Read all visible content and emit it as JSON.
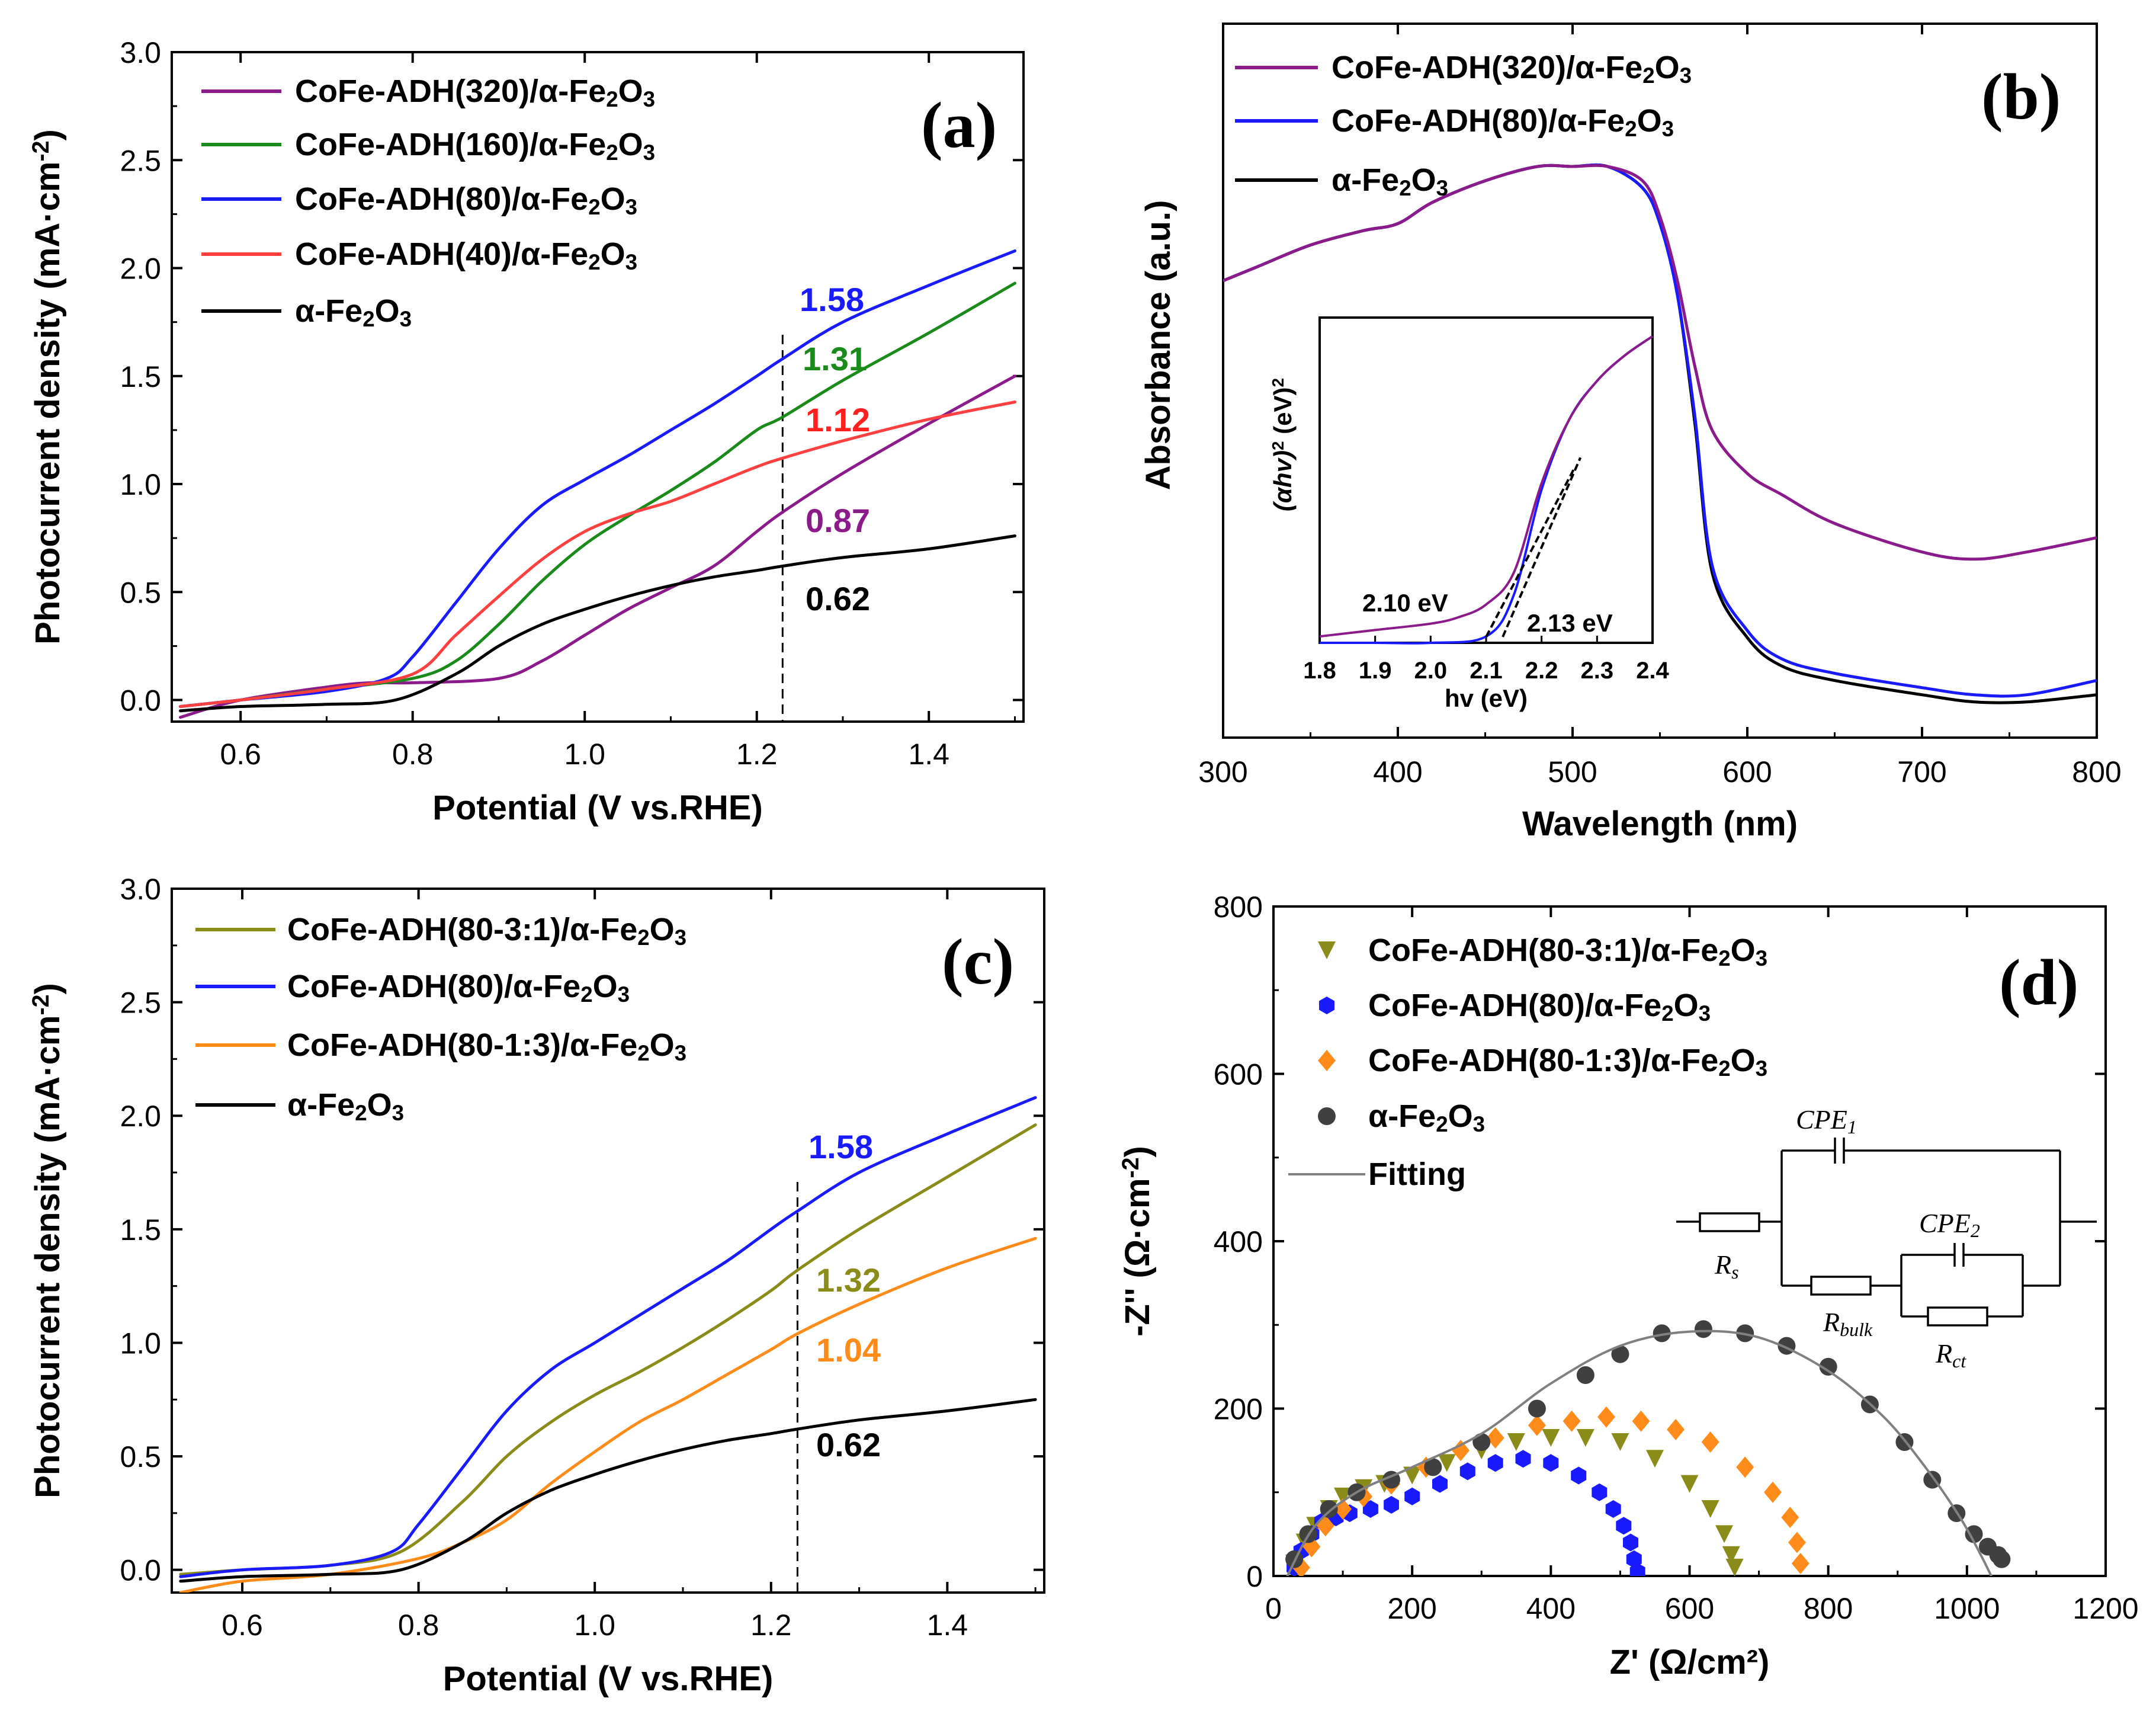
{
  "figure_caption": "",
  "chart_data": [
    {
      "panel": "(a)",
      "type": "line",
      "xlabel": "Potential (V vs.RHE)",
      "ylabel": "Photocurrent density (mA·cm⁻²)",
      "xlim": [
        0.52,
        1.51
      ],
      "ylim": [
        -0.1,
        3.0
      ],
      "xticks": [
        "0.6",
        "0.8",
        "1.0",
        "1.2",
        "1.4"
      ],
      "yticks": [
        "0.0",
        "0.5",
        "1.0",
        "1.5",
        "2.0",
        "2.5",
        "3.0"
      ],
      "dashed_line_x": 1.23,
      "series": [
        {
          "name": "CoFe-ADH(320)/α-Fe₂O₃",
          "color": "#8b1a8b",
          "x": [
            0.53,
            0.6,
            0.7,
            0.75,
            0.8,
            0.9,
            0.95,
            1.0,
            1.05,
            1.1,
            1.15,
            1.2,
            1.23,
            1.3,
            1.4,
            1.5
          ],
          "y": [
            -0.08,
            0.0,
            0.06,
            0.08,
            0.08,
            0.1,
            0.18,
            0.3,
            0.42,
            0.52,
            0.62,
            0.78,
            0.87,
            1.05,
            1.28,
            1.5
          ]
        },
        {
          "name": "CoFe-ADH(160)/α-Fe₂O₃",
          "color": "#1a8a1a",
          "x": [
            0.53,
            0.6,
            0.7,
            0.8,
            0.85,
            0.9,
            0.95,
            1.0,
            1.05,
            1.1,
            1.15,
            1.2,
            1.23,
            1.3,
            1.4,
            1.5
          ],
          "y": [
            -0.03,
            0.0,
            0.05,
            0.1,
            0.18,
            0.35,
            0.55,
            0.72,
            0.85,
            0.97,
            1.1,
            1.25,
            1.31,
            1.48,
            1.7,
            1.93
          ]
        },
        {
          "name": "CoFe-ADH(80)/α-Fe₂O₃",
          "color": "#1a1aff",
          "x": [
            0.53,
            0.6,
            0.7,
            0.77,
            0.8,
            0.85,
            0.9,
            0.95,
            1.0,
            1.05,
            1.1,
            1.15,
            1.2,
            1.23,
            1.3,
            1.4,
            1.5
          ],
          "y": [
            -0.03,
            0.0,
            0.04,
            0.1,
            0.2,
            0.45,
            0.7,
            0.9,
            1.02,
            1.13,
            1.25,
            1.37,
            1.5,
            1.58,
            1.75,
            1.92,
            2.08
          ]
        },
        {
          "name": "CoFe-ADH(40)/α-Fe₂O₃",
          "color": "#ff4040",
          "x": [
            0.53,
            0.6,
            0.7,
            0.8,
            0.85,
            0.9,
            0.95,
            1.0,
            1.05,
            1.1,
            1.15,
            1.2,
            1.23,
            1.3,
            1.4,
            1.5
          ],
          "y": [
            -0.03,
            0.0,
            0.05,
            0.12,
            0.3,
            0.48,
            0.65,
            0.78,
            0.86,
            0.92,
            1.0,
            1.08,
            1.12,
            1.2,
            1.3,
            1.38
          ]
        },
        {
          "name": "α-Fe₂O₃",
          "color": "#000000",
          "x": [
            0.53,
            0.6,
            0.7,
            0.78,
            0.85,
            0.9,
            0.95,
            1.0,
            1.05,
            1.1,
            1.15,
            1.2,
            1.23,
            1.3,
            1.4,
            1.5
          ],
          "y": [
            -0.05,
            -0.03,
            -0.02,
            0.0,
            0.12,
            0.25,
            0.35,
            0.42,
            0.48,
            0.53,
            0.57,
            0.6,
            0.62,
            0.66,
            0.7,
            0.76
          ]
        }
      ],
      "annotations": [
        {
          "text": "1.58",
          "color": "#1a1aff"
        },
        {
          "text": "1.31",
          "color": "#1a8a1a"
        },
        {
          "text": "1.12",
          "color": "#ff2020"
        },
        {
          "text": "0.87",
          "color": "#8b1a8b"
        },
        {
          "text": "0.62",
          "color": "#000000"
        }
      ]
    },
    {
      "panel": "(b)",
      "type": "line",
      "xlabel": "Wavelength (nm)",
      "ylabel": "Absorbance (a.u.)",
      "xlim": [
        300,
        800
      ],
      "ylim": [
        0,
        1.0
      ],
      "xticks": [
        "300",
        "400",
        "500",
        "600",
        "700",
        "800"
      ],
      "series": [
        {
          "name": "CoFe-ADH(320)/α-Fe₂O₃",
          "color": "#8b1a8b",
          "x": [
            300,
            320,
            350,
            380,
            400,
            420,
            450,
            480,
            500,
            520,
            540,
            550,
            560,
            570,
            580,
            600,
            620,
            650,
            700,
            730,
            760,
            800
          ],
          "y": [
            0.64,
            0.66,
            0.69,
            0.71,
            0.72,
            0.75,
            0.78,
            0.8,
            0.8,
            0.8,
            0.78,
            0.73,
            0.64,
            0.52,
            0.43,
            0.37,
            0.34,
            0.3,
            0.26,
            0.25,
            0.26,
            0.28
          ]
        },
        {
          "name": "CoFe-ADH(80)/α-Fe₂O₃",
          "color": "#1a1aff",
          "x": [
            300,
            320,
            350,
            380,
            400,
            420,
            450,
            480,
            500,
            520,
            540,
            550,
            560,
            570,
            580,
            600,
            620,
            650,
            700,
            730,
            760,
            800
          ],
          "y": [
            0.64,
            0.66,
            0.69,
            0.71,
            0.72,
            0.75,
            0.78,
            0.8,
            0.8,
            0.8,
            0.77,
            0.72,
            0.62,
            0.45,
            0.24,
            0.15,
            0.11,
            0.09,
            0.07,
            0.06,
            0.06,
            0.08
          ]
        },
        {
          "name": "α-Fe₂O₃",
          "color": "#000000",
          "x": [
            300,
            320,
            350,
            380,
            400,
            420,
            450,
            480,
            500,
            520,
            540,
            550,
            560,
            570,
            580,
            600,
            620,
            650,
            700,
            730,
            760,
            800
          ],
          "y": [
            0.64,
            0.66,
            0.69,
            0.71,
            0.72,
            0.75,
            0.78,
            0.8,
            0.8,
            0.8,
            0.77,
            0.72,
            0.62,
            0.44,
            0.23,
            0.14,
            0.1,
            0.08,
            0.06,
            0.05,
            0.05,
            0.06
          ]
        }
      ],
      "inset": {
        "xlabel": "hv (eV)",
        "ylabel": "(αhv)² (eV)²",
        "xlim": [
          1.8,
          2.4
        ],
        "xticks": [
          "1.8",
          "1.9",
          "2.0",
          "2.1",
          "2.2",
          "2.3",
          "2.4"
        ],
        "series": [
          {
            "name": "CoFe-ADH(320)/α-Fe₂O₃",
            "color": "#8b1a8b",
            "x": [
              1.8,
              1.9,
              2.0,
              2.05,
              2.1,
              2.15,
              2.2,
              2.25,
              2.3,
              2.35,
              2.4
            ],
            "y": [
              0.02,
              0.04,
              0.06,
              0.08,
              0.12,
              0.22,
              0.5,
              0.7,
              0.82,
              0.9,
              0.96
            ]
          },
          {
            "name": "CoFe-ADH(80)/α-Fe₂O₃",
            "color": "#1a1aff",
            "x": [
              1.8,
              1.9,
              2.0,
              2.1,
              2.15,
              2.2,
              2.25,
              2.3,
              2.35,
              2.4
            ],
            "y": [
              0.0,
              0.0,
              0.0,
              0.02,
              0.15,
              0.48,
              0.7,
              0.82,
              0.9,
              0.96
            ]
          }
        ],
        "annotations": [
          {
            "text": "2.10 eV"
          },
          {
            "text": "2.13 eV"
          }
        ]
      }
    },
    {
      "panel": "(c)",
      "type": "line",
      "xlabel": "Potential (V vs.RHE)",
      "ylabel": "Photocurrent density (mA·cm⁻²)",
      "xlim": [
        0.52,
        1.51
      ],
      "ylim": [
        -0.1,
        3.0
      ],
      "xticks": [
        "0.6",
        "0.8",
        "1.0",
        "1.2",
        "1.4"
      ],
      "yticks": [
        "0.0",
        "0.5",
        "1.0",
        "1.5",
        "2.0",
        "2.5",
        "3.0"
      ],
      "dashed_line_x": 1.23,
      "series": [
        {
          "name": "CoFe-ADH(80-3:1)/α-Fe₂O₃",
          "color": "#8b8b1a",
          "x": [
            0.53,
            0.6,
            0.7,
            0.78,
            0.85,
            0.9,
            0.95,
            1.0,
            1.05,
            1.1,
            1.15,
            1.2,
            1.23,
            1.3,
            1.4,
            1.5
          ],
          "y": [
            -0.02,
            0.0,
            0.02,
            0.08,
            0.3,
            0.5,
            0.65,
            0.77,
            0.87,
            0.98,
            1.1,
            1.23,
            1.32,
            1.5,
            1.73,
            1.96
          ]
        },
        {
          "name": "CoFe-ADH(80)/α-Fe₂O₃",
          "color": "#1a1aff",
          "x": [
            0.53,
            0.6,
            0.7,
            0.77,
            0.8,
            0.85,
            0.9,
            0.95,
            1.0,
            1.05,
            1.1,
            1.15,
            1.2,
            1.23,
            1.3,
            1.4,
            1.5
          ],
          "y": [
            -0.03,
            0.0,
            0.02,
            0.08,
            0.2,
            0.45,
            0.7,
            0.88,
            1.0,
            1.12,
            1.24,
            1.36,
            1.5,
            1.58,
            1.75,
            1.92,
            2.08
          ]
        },
        {
          "name": "CoFe-ADH(80-1:3)/α-Fe₂O₃",
          "color": "#ff8c1a",
          "x": [
            0.53,
            0.6,
            0.7,
            0.8,
            0.85,
            0.9,
            0.95,
            1.0,
            1.05,
            1.1,
            1.15,
            1.2,
            1.23,
            1.3,
            1.4,
            1.5
          ],
          "y": [
            -0.1,
            -0.05,
            -0.02,
            0.05,
            0.12,
            0.22,
            0.38,
            0.52,
            0.65,
            0.75,
            0.86,
            0.97,
            1.04,
            1.17,
            1.33,
            1.46
          ]
        },
        {
          "name": "α-Fe₂O₃",
          "color": "#000000",
          "x": [
            0.53,
            0.6,
            0.7,
            0.78,
            0.85,
            0.9,
            0.95,
            1.0,
            1.05,
            1.1,
            1.15,
            1.2,
            1.23,
            1.3,
            1.4,
            1.5
          ],
          "y": [
            -0.05,
            -0.03,
            -0.02,
            0.0,
            0.12,
            0.25,
            0.35,
            0.42,
            0.48,
            0.53,
            0.57,
            0.6,
            0.62,
            0.66,
            0.7,
            0.75
          ]
        }
      ],
      "annotations": [
        {
          "text": "1.58",
          "color": "#1a1aff"
        },
        {
          "text": "1.32",
          "color": "#8b8b1a"
        },
        {
          "text": "1.04",
          "color": "#ff8c1a"
        },
        {
          "text": "0.62",
          "color": "#000000"
        }
      ]
    },
    {
      "panel": "(d)",
      "type": "scatter",
      "xlabel": "Z' (Ω/cm²)",
      "ylabel": "-Z'' (Ω·cm⁻²)",
      "xlim": [
        0,
        1200
      ],
      "ylim": [
        0,
        800
      ],
      "xticks": [
        "0",
        "200",
        "400",
        "600",
        "800",
        "1000",
        "1200"
      ],
      "yticks": [
        "0",
        "200",
        "400",
        "600",
        "800"
      ],
      "series": [
        {
          "name": "CoFe-ADH(80-3:1)/α-Fe₂O₃",
          "color": "#8b8b1a",
          "marker": "triangle-down",
          "x": [
            30,
            45,
            60,
            80,
            100,
            130,
            160,
            200,
            250,
            300,
            350,
            400,
            450,
            500,
            550,
            600,
            630,
            650,
            660,
            665
          ],
          "y": [
            15,
            40,
            60,
            80,
            95,
            105,
            110,
            120,
            135,
            150,
            160,
            165,
            165,
            160,
            140,
            110,
            80,
            50,
            25,
            10
          ]
        },
        {
          "name": "CoFe-ADH(80)/α-Fe₂O₃",
          "color": "#1a1aff",
          "marker": "hexagon",
          "x": [
            30,
            40,
            55,
            70,
            90,
            110,
            140,
            170,
            200,
            240,
            280,
            320,
            360,
            400,
            440,
            470,
            490,
            505,
            515,
            520,
            525
          ],
          "y": [
            10,
            30,
            50,
            65,
            70,
            75,
            80,
            85,
            95,
            110,
            125,
            135,
            140,
            135,
            120,
            100,
            80,
            60,
            40,
            20,
            5
          ]
        },
        {
          "name": "CoFe-ADH(80-1:3)/α-Fe₂O₃",
          "color": "#ff8c1a",
          "marker": "diamond",
          "x": [
            40,
            55,
            75,
            100,
            130,
            170,
            220,
            270,
            320,
            380,
            430,
            480,
            530,
            580,
            630,
            680,
            720,
            745,
            755,
            760
          ],
          "y": [
            10,
            35,
            60,
            80,
            95,
            110,
            130,
            150,
            165,
            180,
            185,
            190,
            185,
            175,
            160,
            130,
            100,
            70,
            40,
            15
          ]
        },
        {
          "name": "α-Fe₂O₃",
          "color": "#404040",
          "marker": "circle",
          "x": [
            30,
            50,
            80,
            120,
            170,
            230,
            300,
            380,
            450,
            500,
            560,
            620,
            680,
            740,
            800,
            860,
            910,
            950,
            985,
            1010,
            1030,
            1045,
            1050
          ],
          "y": [
            20,
            50,
            80,
            100,
            115,
            130,
            160,
            200,
            240,
            265,
            290,
            295,
            290,
            275,
            250,
            205,
            160,
            115,
            75,
            50,
            35,
            25,
            20
          ]
        },
        {
          "name": "Fitting",
          "color": "#808080",
          "marker": "line",
          "x": [
            20,
            60,
            120,
            200,
            300,
            400,
            500,
            600,
            700,
            800,
            880,
            940,
            990,
            1020,
            1035
          ],
          "y": [
            0,
            60,
            100,
            130,
            170,
            230,
            275,
            292,
            285,
            245,
            190,
            130,
            70,
            25,
            0
          ]
        }
      ],
      "inset_circuit": {
        "labels": [
          "CPE₁",
          "CPE₂",
          "Rₛ",
          "R_bulk",
          "R_ct"
        ],
        "label_parts": [
          {
            "main": "CPE",
            "sub": "1"
          },
          {
            "main": "CPE",
            "sub": "2"
          },
          {
            "main": "R",
            "sub": "s"
          },
          {
            "main": "R",
            "sub": "bulk"
          },
          {
            "main": "R",
            "sub": "ct"
          }
        ]
      }
    }
  ]
}
